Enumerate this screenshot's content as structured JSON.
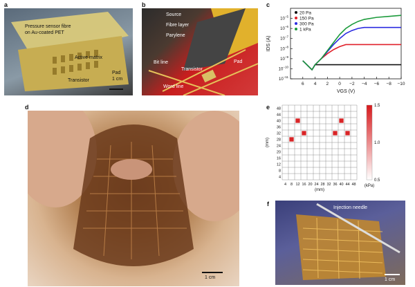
{
  "panels": {
    "a": {
      "label": "a",
      "annotations": {
        "fibre": "Pressure sensor fibre",
        "fibre2": "on Au-coated PET",
        "matrix": "Active matrix",
        "transistor": "Transistor",
        "pad": "Pad",
        "scale": "1 cm"
      }
    },
    "b": {
      "label": "b",
      "annotations": {
        "source": "Source",
        "fibre": "Fibre layer",
        "parylene": "Parylene",
        "pad": "Pad",
        "bitline": "Bit line",
        "transistor": "Transistor",
        "wordline": "Word line"
      }
    },
    "c": {
      "label": "c"
    },
    "d": {
      "label": "d",
      "scale": "1 cm"
    },
    "e": {
      "label": "e"
    },
    "f": {
      "label": "f",
      "needle": "Injection needle",
      "scale": "1 cm"
    }
  },
  "chart_data": [
    {
      "id": "c",
      "type": "line",
      "xlabel": "V_GS (V)",
      "ylabel": "I_DS (A)",
      "xlim": [
        8,
        -10
      ],
      "ylim_log10": [
        -11,
        -4
      ],
      "log_y": true,
      "x_ticks": [
        6,
        4,
        2,
        0,
        -2,
        -4,
        -6,
        -8,
        -10
      ],
      "y_ticks": [
        "10^-11",
        "10^-10",
        "10^-9",
        "10^-8",
        "10^-7",
        "10^-6",
        "10^-5"
      ],
      "legend": "top-left",
      "series": [
        {
          "name": "20 Pa",
          "color": "#111111",
          "x": [
            6,
            5,
            4.5,
            4,
            3,
            2,
            0,
            -2,
            -4,
            -6,
            -8,
            -10
          ],
          "log10y": [
            -9.2,
            -9.8,
            -10.1,
            -9.6,
            -9.6,
            -9.6,
            -9.6,
            -9.6,
            -9.6,
            -9.6,
            -9.6,
            -9.6
          ]
        },
        {
          "name": "150 Pa",
          "color": "#e0202a",
          "x": [
            6,
            5,
            4.5,
            4,
            3,
            2,
            1,
            0,
            -1,
            -2,
            -4,
            -6,
            -8,
            -10
          ],
          "log10y": [
            -9.2,
            -9.8,
            -10.1,
            -9.6,
            -9.0,
            -8.5,
            -8.1,
            -7.8,
            -7.6,
            -7.6,
            -7.6,
            -7.6,
            -7.6,
            -7.6
          ]
        },
        {
          "name": "300 Pa",
          "color": "#2a2ae0",
          "x": [
            6,
            5,
            4.5,
            4,
            3,
            2,
            1,
            0,
            -1,
            -2,
            -3,
            -4,
            -6,
            -8,
            -10
          ],
          "log10y": [
            -9.2,
            -9.8,
            -10.1,
            -9.6,
            -9.0,
            -8.3,
            -7.6,
            -7.0,
            -6.5,
            -6.2,
            -6.0,
            -5.9,
            -5.9,
            -5.9,
            -5.9
          ]
        },
        {
          "name": "1 kPa",
          "color": "#1a9a3a",
          "x": [
            6,
            5,
            4.5,
            4,
            3,
            2,
            1,
            0,
            -1,
            -2,
            -3,
            -4,
            -6,
            -8,
            -10
          ],
          "log10y": [
            -9.2,
            -9.8,
            -10.1,
            -9.6,
            -9.0,
            -8.2,
            -7.4,
            -6.6,
            -6.0,
            -5.6,
            -5.3,
            -5.1,
            -4.9,
            -4.8,
            -4.7
          ]
        }
      ]
    },
    {
      "id": "e",
      "type": "heatmap",
      "xlabel": "(mm)",
      "ylabel": "(mm)",
      "x_ticks": [
        4,
        8,
        12,
        16,
        20,
        24,
        28,
        32,
        36,
        40,
        44,
        48
      ],
      "y_ticks": [
        4,
        8,
        12,
        16,
        20,
        24,
        28,
        32,
        36,
        40,
        44,
        48
      ],
      "colorbar": {
        "min": 0.5,
        "max": 1.5,
        "ticks": [
          "1.5",
          "1.0",
          "0.5"
        ],
        "unit": "(kPa)",
        "low_color": "#ffffff",
        "high_color": "#d7191c"
      },
      "grid_size": 12,
      "pressed_cells": [
        {
          "x": 12,
          "y": 40,
          "value": 1.45
        },
        {
          "x": 40,
          "y": 40,
          "value": 1.45
        },
        {
          "x": 16,
          "y": 32,
          "value": 1.45
        },
        {
          "x": 36,
          "y": 32,
          "value": 1.45
        },
        {
          "x": 44,
          "y": 32,
          "value": 1.45
        },
        {
          "x": 8,
          "y": 28,
          "value": 1.45
        }
      ],
      "background_value": 0.5
    }
  ]
}
